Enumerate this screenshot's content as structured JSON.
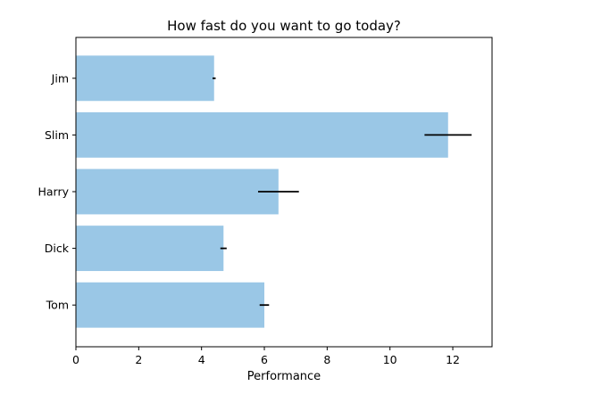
{
  "chart_data": {
    "type": "bar",
    "orientation": "horizontal",
    "title": "How fast do you want to go today?",
    "xlabel": "Performance",
    "ylabel": "",
    "categories": [
      "Tom",
      "Dick",
      "Harry",
      "Slim",
      "Jim"
    ],
    "values": [
      6.0,
      4.7,
      6.45,
      11.85,
      4.4
    ],
    "errors": [
      0.15,
      0.1,
      0.65,
      0.75,
      0.05
    ],
    "xlim": [
      0,
      13.25
    ],
    "xticks": [
      0,
      2,
      4,
      6,
      8,
      10,
      12
    ],
    "bar_color": "#9ac7e6",
    "error_color": "#000000",
    "grid": false
  }
}
